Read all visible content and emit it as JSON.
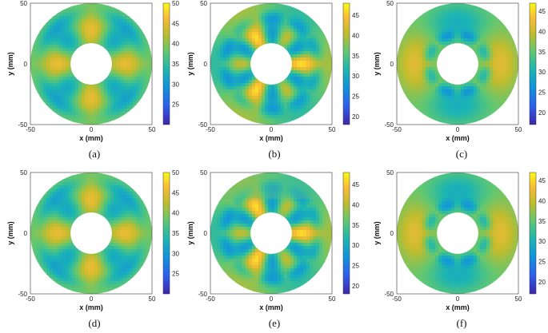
{
  "chart_data": [
    {
      "type": "heatmap",
      "panel": "(a)",
      "xlabel": "x (mm)",
      "ylabel": "y (mm)",
      "x_ticks": [
        "-50",
        "0",
        "50"
      ],
      "y_ticks": [
        "50",
        "0",
        "-50"
      ],
      "xlim": [
        -50,
        50
      ],
      "ylim": [
        -50,
        50
      ],
      "outer_radius_mm": 50,
      "hole_radius_mm": 17,
      "colorbar": {
        "ticks": [
          "50",
          "45",
          "40",
          "35",
          "30",
          "25"
        ],
        "range": [
          20,
          50
        ]
      },
      "stripe_cut": false
    },
    {
      "type": "heatmap",
      "panel": "(b)",
      "xlabel": "x (mm)",
      "ylabel": "y (mm)",
      "x_ticks": [
        "-50",
        "0",
        "50"
      ],
      "y_ticks": [
        "50",
        "0",
        "-50"
      ],
      "xlim": [
        -50,
        50
      ],
      "ylim": [
        -50,
        50
      ],
      "outer_radius_mm": 50,
      "hole_radius_mm": 17,
      "colorbar": {
        "ticks": [
          "45",
          "40",
          "35",
          "30",
          "25",
          "20"
        ],
        "range": [
          18,
          48
        ]
      },
      "stripe_cut": false
    },
    {
      "type": "heatmap",
      "panel": "(c)",
      "xlabel": "x (mm)",
      "ylabel": "y (mm)",
      "x_ticks": [
        "-50",
        "0",
        "50"
      ],
      "y_ticks": [
        "50",
        "0",
        "-50"
      ],
      "xlim": [
        -50,
        50
      ],
      "ylim": [
        -50,
        50
      ],
      "outer_radius_mm": 50,
      "hole_radius_mm": 17,
      "colorbar": {
        "ticks": [
          "45",
          "40",
          "35",
          "30",
          "25",
          "20"
        ],
        "range": [
          17,
          47
        ]
      },
      "stripe_cut": false
    },
    {
      "type": "heatmap",
      "panel": "(d)",
      "xlabel": "x (mm)",
      "ylabel": "y (mm)",
      "x_ticks": [
        "-50",
        "0",
        "50"
      ],
      "y_ticks": [
        "50",
        "0",
        "-50"
      ],
      "xlim": [
        -50,
        50
      ],
      "ylim": [
        -50,
        50
      ],
      "outer_radius_mm": 50,
      "hole_radius_mm": 17,
      "colorbar": {
        "ticks": [
          "50",
          "45",
          "40",
          "35",
          "30",
          "25"
        ],
        "range": [
          20,
          50
        ]
      },
      "stripe_cut": false
    },
    {
      "type": "heatmap",
      "panel": "(e)",
      "xlabel": "x (mm)",
      "ylabel": "y (mm)",
      "x_ticks": [
        "-50",
        "0",
        "50"
      ],
      "y_ticks": [
        "50",
        "0",
        "-50"
      ],
      "xlim": [
        -50,
        50
      ],
      "ylim": [
        -50,
        50
      ],
      "outer_radius_mm": 50,
      "hole_radius_mm": 17,
      "colorbar": {
        "ticks": [
          "45",
          "40",
          "35",
          "30",
          "25",
          "20"
        ],
        "range": [
          18,
          48
        ]
      },
      "stripe_cut": true
    },
    {
      "type": "heatmap",
      "panel": "(f)",
      "xlabel": "x (mm)",
      "ylabel": "y (mm)",
      "x_ticks": [
        "-50",
        "0",
        "50"
      ],
      "y_ticks": [
        "50",
        "0",
        "-50"
      ],
      "xlim": [
        -50,
        50
      ],
      "ylim": [
        -50,
        50
      ],
      "outer_radius_mm": 50,
      "hole_radius_mm": 17,
      "colorbar": {
        "ticks": [
          "45",
          "40",
          "35",
          "30",
          "25",
          "20"
        ],
        "range": [
          17,
          47
        ]
      },
      "stripe_cut": false
    }
  ],
  "captions": [
    "(a)",
    "(b)",
    "(c)",
    "(d)",
    "(e)",
    "(f)"
  ],
  "colors": {
    "low": "#3e26a8",
    "mid": "#22b8aa",
    "high": "#f9fb15",
    "hole": "#ffffff"
  }
}
